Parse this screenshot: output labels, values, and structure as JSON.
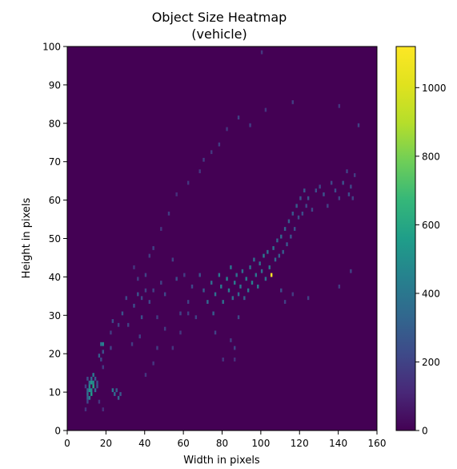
{
  "chart_data": {
    "type": "heatmap",
    "title": "Object Size Heatmap",
    "subtitle": "(vehicle)",
    "xlabel": "Width in pixels",
    "ylabel": "Height in pixels",
    "xlim": [
      0,
      160
    ],
    "ylim": [
      0,
      100
    ],
    "x_ticks": [
      "0",
      "20",
      "40",
      "60",
      "80",
      "100",
      "120",
      "140",
      "160"
    ],
    "y_ticks": [
      "0",
      "10",
      "20",
      "30",
      "40",
      "50",
      "60",
      "70",
      "80",
      "90",
      "100"
    ],
    "colorbar": {
      "range": [
        0,
        1120
      ],
      "ticks": [
        "0",
        "200",
        "400",
        "600",
        "800",
        "1000"
      ],
      "colormap": "viridis"
    },
    "bin_size": 1,
    "grid": false,
    "cells": [
      [
        9,
        5,
        150
      ],
      [
        10,
        7,
        220
      ],
      [
        10,
        8,
        300
      ],
      [
        10,
        9,
        380
      ],
      [
        10,
        10,
        330
      ],
      [
        11,
        8,
        420
      ],
      [
        11,
        10,
        500
      ],
      [
        11,
        11,
        460
      ],
      [
        11,
        12,
        380
      ],
      [
        12,
        9,
        560
      ],
      [
        12,
        10,
        480
      ],
      [
        12,
        12,
        520
      ],
      [
        12,
        13,
        350
      ],
      [
        13,
        11,
        600
      ],
      [
        13,
        12,
        470
      ],
      [
        13,
        14,
        420
      ],
      [
        14,
        10,
        350
      ],
      [
        14,
        13,
        300
      ],
      [
        15,
        11,
        280
      ],
      [
        15,
        12,
        250
      ],
      [
        9,
        11,
        200
      ],
      [
        10,
        13,
        240
      ],
      [
        16,
        19,
        300
      ],
      [
        17,
        22,
        380
      ],
      [
        18,
        22,
        450
      ],
      [
        18,
        20,
        260
      ],
      [
        17,
        18,
        220
      ],
      [
        18,
        16,
        180
      ],
      [
        16,
        7,
        160
      ],
      [
        18,
        5,
        140
      ],
      [
        23,
        10,
        400
      ],
      [
        24,
        9,
        350
      ],
      [
        25,
        10,
        300
      ],
      [
        26,
        8,
        330
      ],
      [
        27,
        9,
        280
      ],
      [
        22,
        21,
        200
      ],
      [
        22,
        25,
        180
      ],
      [
        23,
        28,
        240
      ],
      [
        26,
        27,
        200
      ],
      [
        28,
        30,
        260
      ],
      [
        30,
        34,
        220
      ],
      [
        31,
        27,
        200
      ],
      [
        33,
        22,
        180
      ],
      [
        34,
        32,
        240
      ],
      [
        36,
        35,
        260
      ],
      [
        38,
        34,
        220
      ],
      [
        40,
        36,
        200
      ],
      [
        38,
        29,
        250
      ],
      [
        37,
        24,
        200
      ],
      [
        42,
        33,
        220
      ],
      [
        44,
        36,
        200
      ],
      [
        46,
        29,
        180
      ],
      [
        48,
        38,
        200
      ],
      [
        50,
        35,
        220
      ],
      [
        54,
        44,
        200
      ],
      [
        56,
        39,
        240
      ],
      [
        58,
        30,
        200
      ],
      [
        60,
        40,
        180
      ],
      [
        62,
        33,
        200
      ],
      [
        64,
        37,
        220
      ],
      [
        66,
        29,
        200
      ],
      [
        68,
        40,
        260
      ],
      [
        70,
        36,
        300
      ],
      [
        72,
        33,
        340
      ],
      [
        74,
        38,
        360
      ],
      [
        75,
        30,
        300
      ],
      [
        76,
        35,
        380
      ],
      [
        78,
        40,
        400
      ],
      [
        79,
        37,
        420
      ],
      [
        80,
        33,
        380
      ],
      [
        82,
        39,
        450
      ],
      [
        83,
        36,
        420
      ],
      [
        84,
        42,
        400
      ],
      [
        85,
        34,
        360
      ],
      [
        86,
        38,
        420
      ],
      [
        87,
        40,
        380
      ],
      [
        88,
        35,
        340
      ],
      [
        89,
        37,
        400
      ],
      [
        90,
        41,
        360
      ],
      [
        91,
        34,
        320
      ],
      [
        92,
        39,
        420
      ],
      [
        93,
        36,
        400
      ],
      [
        94,
        42,
        380
      ],
      [
        95,
        38,
        440
      ],
      [
        96,
        44,
        360
      ],
      [
        97,
        40,
        400
      ],
      [
        98,
        37,
        420
      ],
      [
        99,
        43,
        380
      ],
      [
        100,
        41,
        360
      ],
      [
        101,
        45,
        420
      ],
      [
        102,
        39,
        380
      ],
      [
        103,
        46,
        360
      ],
      [
        104,
        42,
        400
      ],
      [
        105,
        40,
        1120
      ],
      [
        106,
        47,
        380
      ],
      [
        107,
        44,
        340
      ],
      [
        108,
        49,
        320
      ],
      [
        109,
        45,
        300
      ],
      [
        110,
        50,
        340
      ],
      [
        111,
        46,
        300
      ],
      [
        112,
        52,
        320
      ],
      [
        113,
        48,
        280
      ],
      [
        114,
        54,
        300
      ],
      [
        115,
        50,
        260
      ],
      [
        116,
        56,
        280
      ],
      [
        117,
        52,
        260
      ],
      [
        118,
        58,
        300
      ],
      [
        119,
        55,
        240
      ],
      [
        120,
        60,
        260
      ],
      [
        121,
        56,
        240
      ],
      [
        122,
        62,
        280
      ],
      [
        123,
        58,
        220
      ],
      [
        124,
        60,
        260
      ],
      [
        126,
        57,
        220
      ],
      [
        128,
        62,
        240
      ],
      [
        130,
        63,
        220
      ],
      [
        132,
        61,
        260
      ],
      [
        134,
        58,
        200
      ],
      [
        136,
        64,
        220
      ],
      [
        138,
        62,
        240
      ],
      [
        140,
        60,
        200
      ],
      [
        142,
        64,
        260
      ],
      [
        144,
        67,
        200
      ],
      [
        145,
        61,
        240
      ],
      [
        146,
        63,
        220
      ],
      [
        147,
        60,
        200
      ],
      [
        148,
        66,
        180
      ],
      [
        150,
        79,
        200
      ],
      [
        140,
        84,
        160
      ],
      [
        116,
        85,
        180
      ],
      [
        102,
        83,
        160
      ],
      [
        94,
        79,
        180
      ],
      [
        88,
        81,
        200
      ],
      [
        82,
        78,
        160
      ],
      [
        78,
        74,
        180
      ],
      [
        74,
        72,
        160
      ],
      [
        70,
        70,
        180
      ],
      [
        68,
        67,
        160
      ],
      [
        62,
        64,
        160
      ],
      [
        56,
        61,
        140
      ],
      [
        52,
        56,
        180
      ],
      [
        48,
        52,
        160
      ],
      [
        44,
        47,
        200
      ],
      [
        42,
        45,
        180
      ],
      [
        40,
        40,
        200
      ],
      [
        36,
        39,
        180
      ],
      [
        34,
        42,
        160
      ],
      [
        100,
        98,
        160
      ],
      [
        146,
        41,
        200
      ],
      [
        140,
        37,
        180
      ],
      [
        124,
        34,
        200
      ],
      [
        116,
        35,
        180
      ],
      [
        112,
        33,
        200
      ],
      [
        110,
        36,
        240
      ],
      [
        88,
        29,
        220
      ],
      [
        76,
        25,
        200
      ],
      [
        84,
        23,
        180
      ],
      [
        86,
        21,
        200
      ],
      [
        62,
        30,
        180
      ],
      [
        58,
        25,
        160
      ],
      [
        54,
        21,
        160
      ],
      [
        50,
        26,
        180
      ],
      [
        46,
        21,
        180
      ],
      [
        44,
        17,
        160
      ],
      [
        40,
        14,
        160
      ],
      [
        80,
        18,
        160
      ],
      [
        86,
        18,
        140
      ]
    ]
  }
}
